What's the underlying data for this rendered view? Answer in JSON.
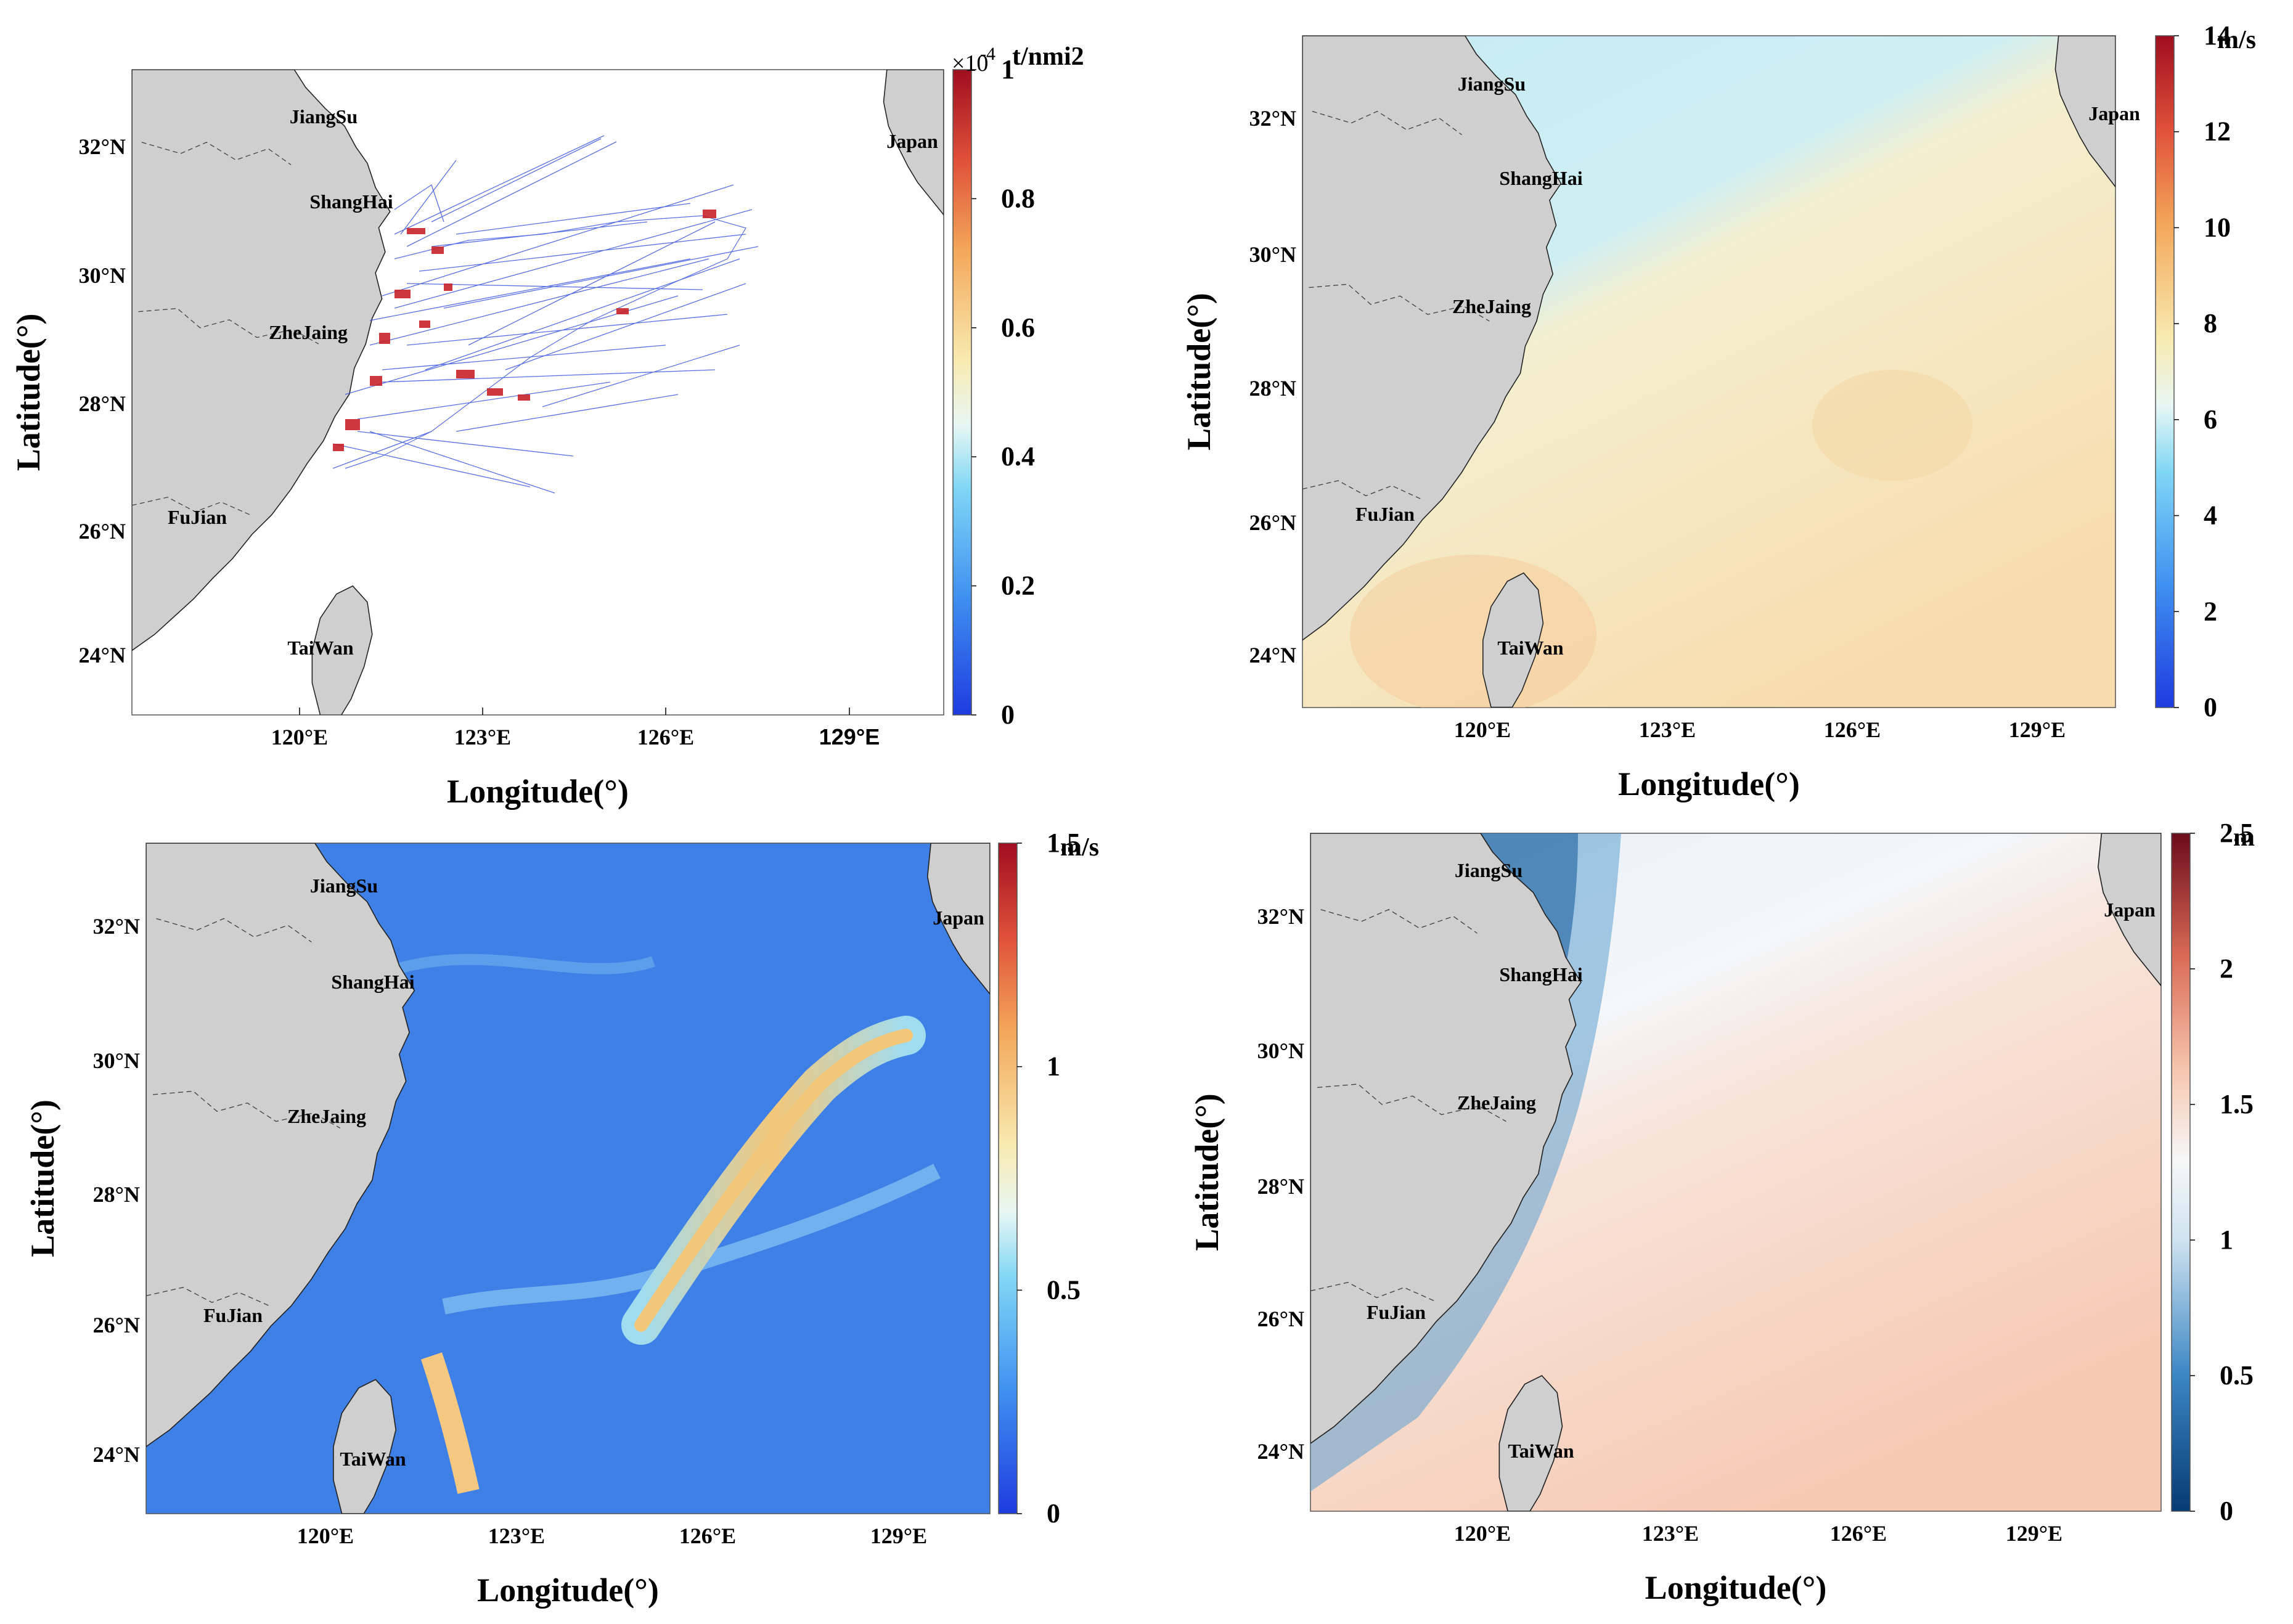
{
  "axes": {
    "xlabel": "Longitude(°)",
    "ylabel": "Latitude(°)",
    "xticks": [
      "120°E",
      "123°E",
      "126°E",
      "129°E"
    ],
    "yticks": [
      "32°N",
      "30°N",
      "28°N",
      "26°N",
      "24°N"
    ]
  },
  "places": [
    "JiangSu",
    "ShangHai",
    "ZheJaing",
    "FuJian",
    "TaiWan",
    "Japan"
  ],
  "panels": [
    {
      "id": "a",
      "colormap": "jet-like",
      "colorbar_unit": "t/nmi2",
      "colorbar_exponent": "×10",
      "colorbar_exponent_power": "-4",
      "colorbar_ticks": [
        "1",
        "0.8",
        "0.6",
        "0.4",
        "0.2",
        "0"
      ],
      "x_tick_129_label": "129°E"
    },
    {
      "id": "b",
      "colormap": "jet-like",
      "colorbar_unit": "m/s",
      "colorbar_ticks": [
        "14",
        "12",
        "10",
        "8",
        "6",
        "4",
        "2",
        "0"
      ]
    },
    {
      "id": "c",
      "colormap": "jet-like",
      "colorbar_unit": "m/s",
      "colorbar_ticks": [
        "1.5",
        "1",
        "0.5",
        "0"
      ]
    },
    {
      "id": "d",
      "colormap": "diverging-red-blue",
      "colorbar_unit": "m",
      "colorbar_ticks": [
        "2.5",
        "2",
        "1.5",
        "1",
        "0.5",
        "0"
      ]
    }
  ],
  "colors": {
    "land": "#cfcfcf",
    "track_blue": "#3b55e0",
    "track_red": "#c8222a",
    "wind_low": "#bfe6f2",
    "wind_high": "#f8e4b8",
    "current_bg": "#3f80e6",
    "kuroshio": "#f0c070",
    "wave_low": "#0d4d8c",
    "wave_high": "#f7d1c0"
  }
}
